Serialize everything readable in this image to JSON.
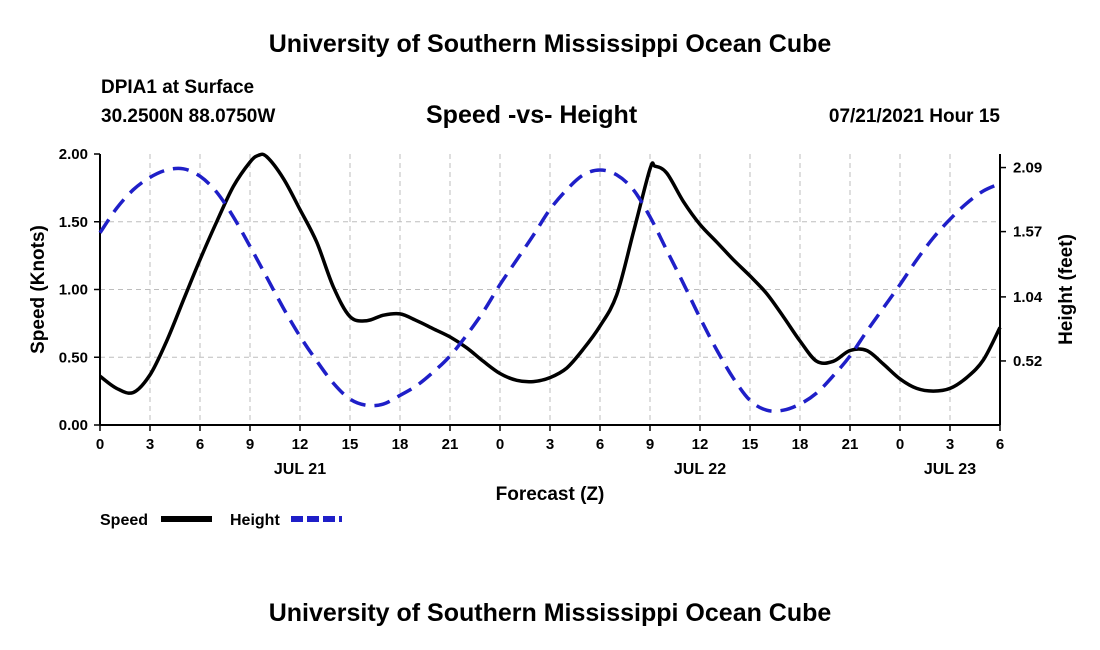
{
  "header": {
    "title": "University of Southern Mississippi Ocean Cube",
    "station": "DPIA1 at Surface",
    "coords": "30.2500N  88.0750W",
    "subtitle": "Speed -vs- Height",
    "date": "07/21/2021 Hour 15"
  },
  "footer": {
    "title": "University of Southern Mississippi Ocean Cube"
  },
  "chart_data": {
    "type": "line",
    "title": "Speed -vs- Height",
    "xlabel": "Forecast (Z)",
    "ylabel": "Speed (Knots)",
    "ylabel_right": "Height (feet)",
    "x_range_hours": [
      0,
      54
    ],
    "x_ticks": [
      {
        "h": 0,
        "label": "0"
      },
      {
        "h": 3,
        "label": "3"
      },
      {
        "h": 6,
        "label": "6"
      },
      {
        "h": 9,
        "label": "9"
      },
      {
        "h": 12,
        "label": "12"
      },
      {
        "h": 15,
        "label": "15"
      },
      {
        "h": 18,
        "label": "18"
      },
      {
        "h": 21,
        "label": "21"
      },
      {
        "h": 24,
        "label": "0"
      },
      {
        "h": 27,
        "label": "3"
      },
      {
        "h": 30,
        "label": "6"
      },
      {
        "h": 33,
        "label": "9"
      },
      {
        "h": 36,
        "label": "12"
      },
      {
        "h": 39,
        "label": "15"
      },
      {
        "h": 42,
        "label": "18"
      },
      {
        "h": 45,
        "label": "21"
      },
      {
        "h": 48,
        "label": "0"
      },
      {
        "h": 51,
        "label": "3"
      },
      {
        "h": 54,
        "label": "6"
      }
    ],
    "date_labels": [
      {
        "h": 12,
        "label": "JUL 21"
      },
      {
        "h": 36,
        "label": "JUL 22"
      },
      {
        "h": 51,
        "label": "JUL 23"
      }
    ],
    "y_left": {
      "min": 0,
      "max": 2.0,
      "ticks": [
        "0.00",
        "0.50",
        "1.00",
        "1.50",
        "2.00"
      ]
    },
    "y_right": {
      "min": 0.0,
      "max": 2.2,
      "ticks": [
        "0.52",
        "1.04",
        "1.57",
        "2.09"
      ]
    },
    "series": [
      {
        "name": "Speed",
        "color": "#000000",
        "axis": "left",
        "dash": "solid",
        "points": [
          [
            0,
            0.36
          ],
          [
            1,
            0.27
          ],
          [
            2,
            0.24
          ],
          [
            3,
            0.37
          ],
          [
            4,
            0.62
          ],
          [
            5,
            0.92
          ],
          [
            6,
            1.22
          ],
          [
            7,
            1.5
          ],
          [
            8,
            1.76
          ],
          [
            9,
            1.94
          ],
          [
            9.5,
            1.99
          ],
          [
            10,
            1.98
          ],
          [
            11,
            1.82
          ],
          [
            12,
            1.59
          ],
          [
            13,
            1.35
          ],
          [
            14,
            1.02
          ],
          [
            15,
            0.8
          ],
          [
            16,
            0.77
          ],
          [
            17,
            0.81
          ],
          [
            18,
            0.82
          ],
          [
            19,
            0.77
          ],
          [
            20,
            0.71
          ],
          [
            21,
            0.65
          ],
          [
            22,
            0.57
          ],
          [
            23,
            0.47
          ],
          [
            24,
            0.38
          ],
          [
            25,
            0.33
          ],
          [
            26,
            0.32
          ],
          [
            27,
            0.35
          ],
          [
            28,
            0.42
          ],
          [
            29,
            0.56
          ],
          [
            30,
            0.73
          ],
          [
            31,
            0.96
          ],
          [
            32,
            1.42
          ],
          [
            33,
            1.89
          ],
          [
            33.3,
            1.91
          ],
          [
            34,
            1.86
          ],
          [
            35,
            1.65
          ],
          [
            36,
            1.48
          ],
          [
            37,
            1.35
          ],
          [
            38,
            1.22
          ],
          [
            39,
            1.1
          ],
          [
            40,
            0.97
          ],
          [
            41,
            0.8
          ],
          [
            42,
            0.62
          ],
          [
            43,
            0.47
          ],
          [
            44,
            0.47
          ],
          [
            45,
            0.55
          ],
          [
            46,
            0.55
          ],
          [
            47,
            0.45
          ],
          [
            48,
            0.34
          ],
          [
            49,
            0.27
          ],
          [
            50,
            0.25
          ],
          [
            51,
            0.27
          ],
          [
            52,
            0.35
          ],
          [
            53,
            0.48
          ],
          [
            54,
            0.72
          ]
        ]
      },
      {
        "name": "Height",
        "color": "#1f1fc8",
        "axis": "right",
        "dash": "dashed",
        "points": [
          [
            0,
            1.56
          ],
          [
            1,
            1.76
          ],
          [
            2,
            1.91
          ],
          [
            3,
            2.01
          ],
          [
            4,
            2.07
          ],
          [
            5,
            2.08
          ],
          [
            6,
            2.02
          ],
          [
            7,
            1.89
          ],
          [
            8,
            1.69
          ],
          [
            9,
            1.45
          ],
          [
            10,
            1.2
          ],
          [
            11,
            0.95
          ],
          [
            12,
            0.72
          ],
          [
            13,
            0.52
          ],
          [
            14,
            0.34
          ],
          [
            15,
            0.21
          ],
          [
            16,
            0.16
          ],
          [
            17,
            0.17
          ],
          [
            18,
            0.24
          ],
          [
            19,
            0.32
          ],
          [
            20,
            0.43
          ],
          [
            21,
            0.56
          ],
          [
            22,
            0.73
          ],
          [
            23,
            0.92
          ],
          [
            24,
            1.14
          ],
          [
            25,
            1.34
          ],
          [
            26,
            1.54
          ],
          [
            27,
            1.75
          ],
          [
            28,
            1.91
          ],
          [
            29,
            2.03
          ],
          [
            30,
            2.07
          ],
          [
            31,
            2.03
          ],
          [
            32,
            1.91
          ],
          [
            33,
            1.69
          ],
          [
            34,
            1.42
          ],
          [
            35,
            1.15
          ],
          [
            36,
            0.87
          ],
          [
            37,
            0.61
          ],
          [
            38,
            0.38
          ],
          [
            39,
            0.2
          ],
          [
            40,
            0.12
          ],
          [
            41,
            0.12
          ],
          [
            42,
            0.17
          ],
          [
            43,
            0.26
          ],
          [
            44,
            0.4
          ],
          [
            45,
            0.56
          ],
          [
            46,
            0.76
          ],
          [
            47,
            0.95
          ],
          [
            48,
            1.14
          ],
          [
            49,
            1.34
          ],
          [
            50,
            1.52
          ],
          [
            51,
            1.67
          ],
          [
            52,
            1.8
          ],
          [
            53,
            1.9
          ],
          [
            54,
            1.96
          ]
        ]
      }
    ]
  },
  "legend": {
    "items": [
      {
        "label": "Speed",
        "color": "#000000",
        "dash": "solid"
      },
      {
        "label": "Height",
        "color": "#1f1fc8",
        "dash": "dashed"
      }
    ]
  }
}
